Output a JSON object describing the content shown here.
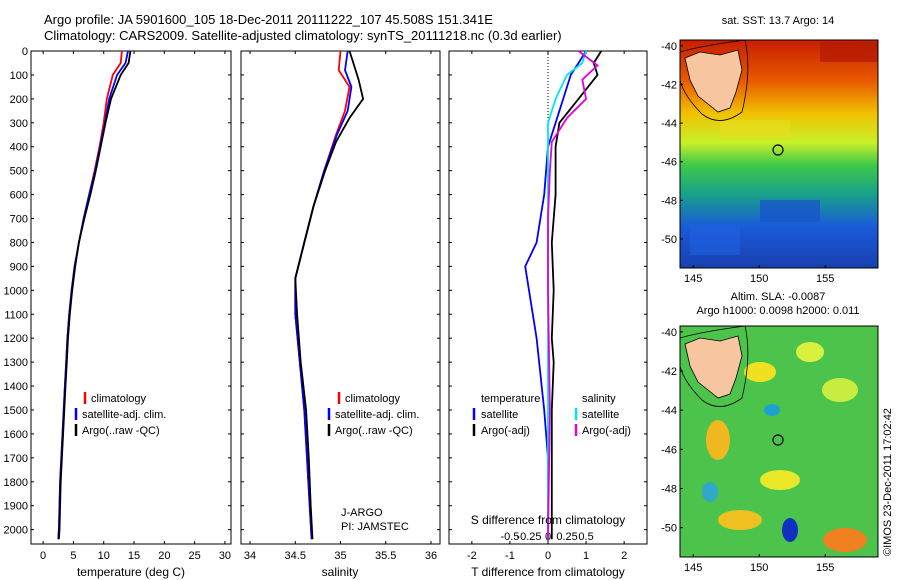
{
  "header": {
    "line1": "Argo profile: JA 5901600_105 18-Dec-2011 20111222_107 45.508S 151.341E",
    "line2": "Climatology: CARS2009. Satellite-adjusted climatology: synTS_20111218.nc (0.3d earlier)"
  },
  "colors": {
    "climatology": "#ff0000",
    "satellite": "#0000ff",
    "argo": "#000000",
    "sal_satellite": "#00e5ee",
    "sal_argo": "#e000e0",
    "land": "#f7c59f"
  },
  "chart_data": [
    {
      "type": "line",
      "id": "temperature",
      "xlabel": "temperature (deg C)",
      "ylabel": "",
      "xlim": [
        -2,
        31
      ],
      "ylim": [
        2060,
        0
      ],
      "xticks": [
        0,
        5,
        10,
        15,
        20,
        25,
        30
      ],
      "yticks": [
        0,
        100,
        200,
        300,
        400,
        500,
        600,
        700,
        800,
        900,
        1000,
        1100,
        1200,
        1300,
        1400,
        1500,
        1600,
        1700,
        1800,
        1900,
        2000
      ],
      "legend": [
        "climatology",
        "satellite-adj. clim.",
        "Argo(..raw -QC)"
      ],
      "series": [
        {
          "name": "climatology",
          "points": [
            [
              13.0,
              0
            ],
            [
              12.8,
              50
            ],
            [
              11.5,
              100
            ],
            [
              10.5,
              200
            ],
            [
              10.0,
              300
            ],
            [
              9.3,
              400
            ],
            [
              8.5,
              500
            ],
            [
              7.6,
              600
            ],
            [
              6.7,
              700
            ],
            [
              5.9,
              800
            ],
            [
              5.2,
              900
            ],
            [
              4.7,
              1000
            ],
            [
              4.3,
              1100
            ],
            [
              4.0,
              1200
            ],
            [
              3.8,
              1300
            ],
            [
              3.6,
              1400
            ],
            [
              3.4,
              1500
            ],
            [
              3.2,
              1600
            ],
            [
              3.0,
              1700
            ],
            [
              2.8,
              1800
            ],
            [
              2.7,
              1900
            ],
            [
              2.6,
              2000
            ],
            [
              2.5,
              2040
            ]
          ]
        },
        {
          "name": "satellite-adj. clim.",
          "points": [
            [
              14.0,
              0
            ],
            [
              13.6,
              50
            ],
            [
              12.2,
              100
            ],
            [
              10.9,
              200
            ],
            [
              10.2,
              300
            ],
            [
              9.4,
              400
            ],
            [
              8.6,
              500
            ],
            [
              7.6,
              600
            ],
            [
              6.7,
              700
            ],
            [
              5.9,
              800
            ],
            [
              5.2,
              900
            ],
            [
              4.7,
              1000
            ],
            [
              4.3,
              1100
            ],
            [
              4.0,
              1200
            ],
            [
              3.8,
              1300
            ],
            [
              3.6,
              1400
            ],
            [
              3.4,
              1500
            ],
            [
              3.2,
              1600
            ],
            [
              3.0,
              1700
            ],
            [
              2.8,
              1800
            ],
            [
              2.7,
              1900
            ],
            [
              2.6,
              2000
            ],
            [
              2.5,
              2040
            ]
          ]
        },
        {
          "name": "Argo(..raw -QC)",
          "points": [
            [
              14.4,
              0
            ],
            [
              14.1,
              50
            ],
            [
              12.8,
              100
            ],
            [
              11.2,
              200
            ],
            [
              10.3,
              300
            ],
            [
              9.5,
              400
            ],
            [
              8.7,
              500
            ],
            [
              7.8,
              600
            ],
            [
              6.8,
              700
            ],
            [
              5.9,
              800
            ],
            [
              5.3,
              900
            ],
            [
              4.8,
              1000
            ],
            [
              4.4,
              1100
            ],
            [
              4.1,
              1200
            ],
            [
              3.9,
              1300
            ],
            [
              3.7,
              1400
            ],
            [
              3.5,
              1500
            ],
            [
              3.3,
              1600
            ],
            [
              3.1,
              1700
            ],
            [
              2.9,
              1800
            ],
            [
              2.8,
              1900
            ],
            [
              2.7,
              2000
            ],
            [
              2.6,
              2040
            ]
          ]
        }
      ]
    },
    {
      "type": "line",
      "id": "salinity",
      "xlabel": "salinity",
      "ylabel": "",
      "xlim": [
        33.9,
        36.1
      ],
      "ylim": [
        2060,
        0
      ],
      "xticks": [
        34,
        34.5,
        35,
        35.5,
        36
      ],
      "legend": [
        "climatology",
        "satellite-adj. clim.",
        "Argo(..raw -QC)"
      ],
      "annotation": [
        "J-ARGO",
        "PI: JAMSTEC"
      ],
      "series": [
        {
          "name": "climatology",
          "points": [
            [
              35.0,
              0
            ],
            [
              34.98,
              80
            ],
            [
              35.1,
              150
            ],
            [
              35.05,
              250
            ],
            [
              34.95,
              350
            ],
            [
              34.82,
              500
            ],
            [
              34.7,
              650
            ],
            [
              34.6,
              800
            ],
            [
              34.5,
              950
            ],
            [
              34.5,
              1100
            ],
            [
              34.55,
              1300
            ],
            [
              34.6,
              1500
            ],
            [
              34.63,
              1700
            ],
            [
              34.66,
              1900
            ],
            [
              34.68,
              2040
            ]
          ]
        },
        {
          "name": "satellite-adj. clim.",
          "points": [
            [
              35.08,
              0
            ],
            [
              35.05,
              80
            ],
            [
              35.12,
              150
            ],
            [
              35.08,
              250
            ],
            [
              34.96,
              350
            ],
            [
              34.82,
              500
            ],
            [
              34.7,
              650
            ],
            [
              34.6,
              800
            ],
            [
              34.5,
              950
            ],
            [
              34.5,
              1100
            ],
            [
              34.55,
              1300
            ],
            [
              34.6,
              1500
            ],
            [
              34.63,
              1700
            ],
            [
              34.66,
              1900
            ],
            [
              34.68,
              2040
            ]
          ]
        },
        {
          "name": "Argo(..raw -QC)",
          "points": [
            [
              35.1,
              0
            ],
            [
              35.15,
              60
            ],
            [
              35.2,
              120
            ],
            [
              35.25,
              200
            ],
            [
              35.1,
              280
            ],
            [
              34.95,
              380
            ],
            [
              34.83,
              500
            ],
            [
              34.7,
              650
            ],
            [
              34.6,
              800
            ],
            [
              34.5,
              950
            ],
            [
              34.52,
              1100
            ],
            [
              34.56,
              1300
            ],
            [
              34.62,
              1500
            ],
            [
              34.65,
              1700
            ],
            [
              34.67,
              1900
            ],
            [
              34.69,
              2040
            ]
          ]
        }
      ]
    },
    {
      "type": "line",
      "id": "difference",
      "xlabel": "T difference from climatology",
      "xlabel_top": "S difference from climatology",
      "ylabel": "",
      "xlim": [
        -2.6,
        2.6
      ],
      "ylim": [
        2060,
        0
      ],
      "xticks": [
        -2,
        -1,
        0,
        1,
        2
      ],
      "s_xticks": [
        "-0.5",
        "-0.25",
        "0",
        "0.25",
        "0.5"
      ],
      "legend_headers": [
        "temperature",
        "salinity"
      ],
      "legend": [
        "satellite",
        "Argo(-adj)",
        "satellite",
        "Argo(-adj)"
      ],
      "series": [
        {
          "name": "T satellite",
          "points": [
            [
              1.0,
              0
            ],
            [
              0.8,
              50
            ],
            [
              0.6,
              100
            ],
            [
              0.4,
              200
            ],
            [
              0.2,
              300
            ],
            [
              0.0,
              400
            ],
            [
              -0.1,
              600
            ],
            [
              -0.3,
              800
            ],
            [
              -0.6,
              900
            ],
            [
              -0.5,
              1000
            ],
            [
              -0.3,
              1200
            ],
            [
              -0.1,
              1500
            ],
            [
              0,
              1700
            ],
            [
              0,
              2040
            ]
          ]
        },
        {
          "name": "T Argo(-adj)",
          "points": [
            [
              1.4,
              0
            ],
            [
              1.2,
              50
            ],
            [
              1.3,
              100
            ],
            [
              0.8,
              200
            ],
            [
              0.3,
              300
            ],
            [
              0.2,
              400
            ],
            [
              0.2,
              600
            ],
            [
              0.1,
              800
            ],
            [
              0.15,
              1000
            ],
            [
              0.1,
              1200
            ],
            [
              0.15,
              1300
            ],
            [
              0.1,
              1500
            ],
            [
              0.1,
              1700
            ],
            [
              0.1,
              2040
            ]
          ]
        },
        {
          "name": "S satellite",
          "points": [
            [
              1.0,
              0
            ],
            [
              0.9,
              50
            ],
            [
              0.5,
              100
            ],
            [
              0.2,
              200
            ],
            [
              0.0,
              300
            ],
            [
              0.0,
              400
            ],
            [
              0,
              600
            ],
            [
              0,
              1000
            ],
            [
              0,
              2040
            ]
          ]
        },
        {
          "name": "S Argo(-adj)",
          "points": [
            [
              0.8,
              0
            ],
            [
              1.3,
              60
            ],
            [
              0.9,
              120
            ],
            [
              1.0,
              200
            ],
            [
              0.5,
              280
            ],
            [
              0.1,
              380
            ],
            [
              0.05,
              500
            ],
            [
              0,
              700
            ],
            [
              0,
              1000
            ],
            [
              0.05,
              1500
            ],
            [
              0,
              2040
            ]
          ]
        }
      ]
    },
    {
      "type": "heatmap",
      "id": "sst_map",
      "title": "sat. SST: 13.7 Argo: 14",
      "xticks": [
        145,
        150,
        155
      ],
      "yticks": [
        -40,
        -42,
        -44,
        -46,
        -48,
        -50
      ]
    },
    {
      "type": "heatmap",
      "id": "sla_map",
      "title_line1": "Altim. SLA: -0.0087",
      "title_line2": "Argo h1000: 0.0098 h2000: 0.011",
      "xticks": [
        145,
        150,
        155
      ],
      "yticks": [
        -40,
        -42,
        -44,
        -46,
        -48,
        -50
      ]
    }
  ],
  "footer": {
    "imos_stamp": "©IMOS 23-Dec-2011 17:02:42"
  }
}
